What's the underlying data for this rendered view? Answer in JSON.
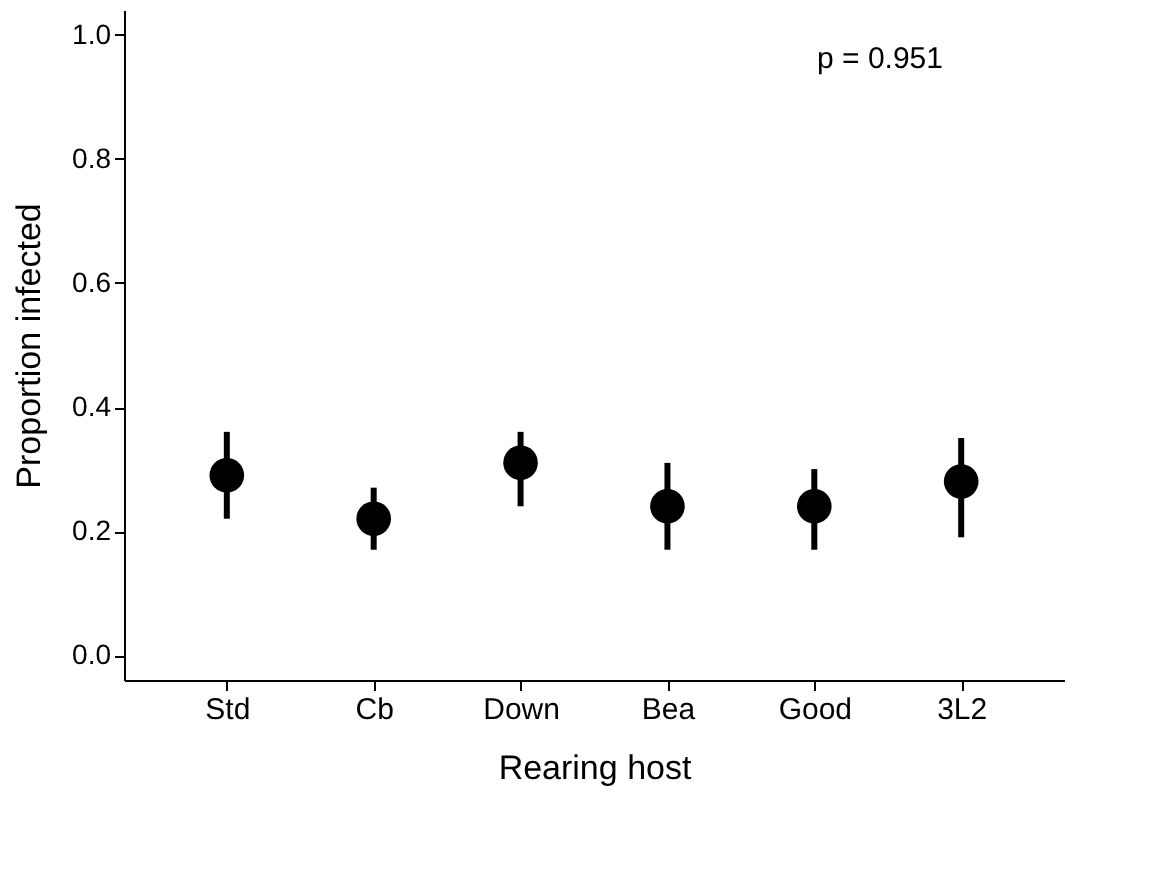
{
  "chart_data": {
    "type": "scatter",
    "xlabel": "Rearing host",
    "ylabel": "Proportion infected",
    "categories": [
      "Std",
      "Cb",
      "Down",
      "Bea",
      "Good",
      "3L2"
    ],
    "series": [
      {
        "color": "#000000",
        "values": [
          0.29,
          0.22,
          0.31,
          0.24,
          0.24,
          0.28
        ],
        "errors": [
          [
            0.22,
            0.36
          ],
          [
            0.17,
            0.27
          ],
          [
            0.24,
            0.36
          ],
          [
            0.17,
            0.31
          ],
          [
            0.17,
            0.3
          ],
          [
            0.19,
            0.35
          ]
        ]
      }
    ],
    "ylim": [
      -0.04,
      1.04
    ],
    "yticks": [
      {
        "value": 0,
        "label": "0.0"
      },
      0.2,
      0.4,
      0.6,
      0.8,
      {
        "value": 1,
        "label": "1.0"
      }
    ],
    "marker": "circle",
    "grid": false,
    "annotations": [
      "p = 0.951"
    ]
  }
}
